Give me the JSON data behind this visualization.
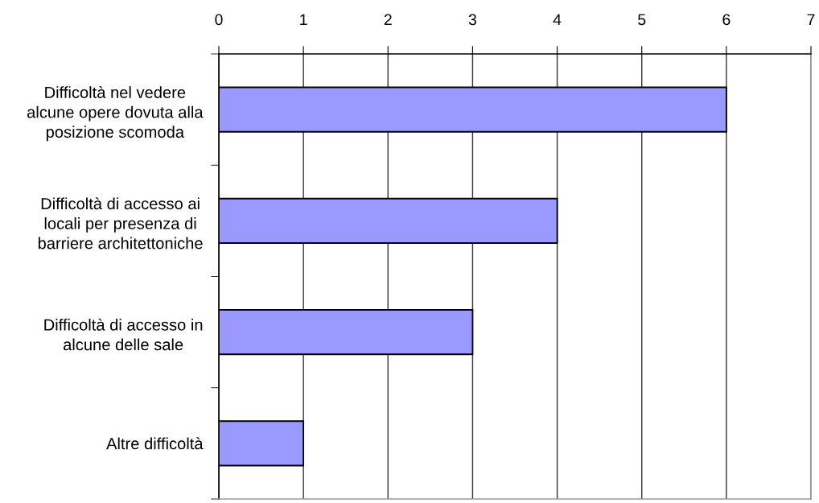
{
  "chart_data": {
    "type": "bar",
    "orientation": "horizontal",
    "categories": [
      "Difficoltà nel vedere\nalcune opere dovuta alla\nposizione scomoda",
      "Difficoltà di accesso ai\nlocali per presenza di\nbarriere architettoniche",
      "Difficoltà di accesso in\nalcune delle sale",
      "Altre difficoltà"
    ],
    "values": [
      6,
      4,
      3,
      1
    ],
    "color": "#9999ff",
    "xlim": [
      0,
      7
    ],
    "xticks": [
      0,
      1,
      2,
      3,
      4,
      5,
      6,
      7
    ],
    "grid": "x"
  }
}
